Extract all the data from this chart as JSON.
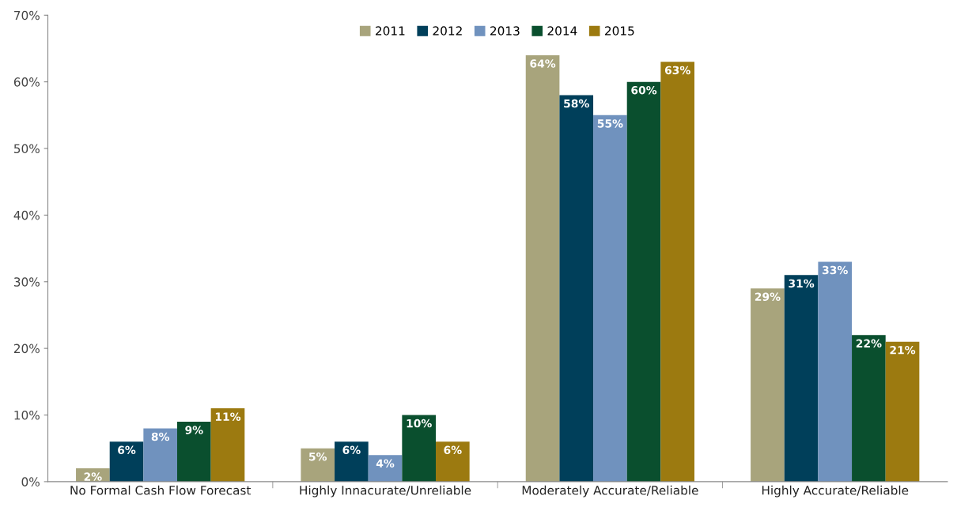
{
  "chart_data": {
    "type": "bar",
    "categories": [
      "No Formal Cash Flow Forecast",
      "Highly Innacurate/Unreliable",
      "Moderately Accurate/Reliable",
      "Highly Accurate/Reliable"
    ],
    "series": [
      {
        "name": "2011",
        "color": "#a8a47c",
        "values": [
          2,
          5,
          64,
          29
        ],
        "value_labels": [
          "2%",
          "5%",
          "64%",
          "29%"
        ]
      },
      {
        "name": "2012",
        "color": "#003f5a",
        "values": [
          6,
          6,
          58,
          31
        ],
        "value_labels": [
          "6%",
          "6%",
          "58%",
          "31%"
        ]
      },
      {
        "name": "2013",
        "color": "#7092be",
        "values": [
          8,
          4,
          55,
          33
        ],
        "value_labels": [
          "8%",
          "4%",
          "55%",
          "33%"
        ]
      },
      {
        "name": "2014",
        "color": "#0a4f2e",
        "values": [
          9,
          10,
          60,
          22
        ],
        "value_labels": [
          "9%",
          "10%",
          "60%",
          "22%"
        ]
      },
      {
        "name": "2015",
        "color": "#9c7a10",
        "values": [
          11,
          6,
          63,
          21
        ],
        "value_labels": [
          "11%",
          "6%",
          "63%",
          "21%"
        ]
      }
    ],
    "ylim": [
      0,
      70
    ],
    "yticks": [
      {
        "value": 0,
        "label": "0%"
      },
      {
        "value": 10,
        "label": "10%"
      },
      {
        "value": 20,
        "label": "20%"
      },
      {
        "value": 30,
        "label": "30%"
      },
      {
        "value": 40,
        "label": "40%"
      },
      {
        "value": 50,
        "label": "50%"
      },
      {
        "value": 60,
        "label": "60%"
      },
      {
        "value": 70,
        "label": "70%"
      }
    ],
    "grid": false,
    "legend": "top"
  }
}
